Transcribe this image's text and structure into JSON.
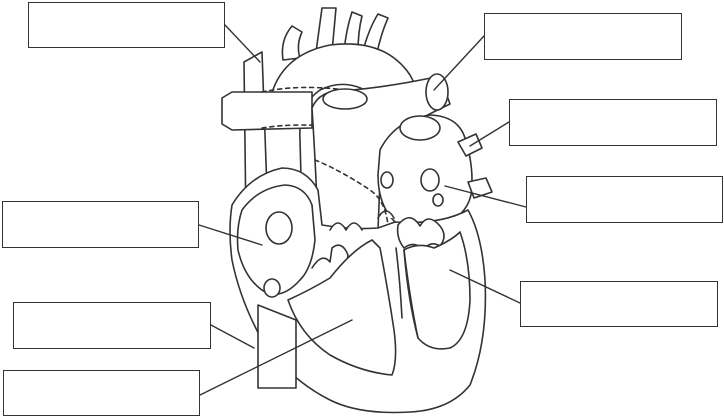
{
  "diagram": {
    "labels": [
      {
        "id": "label-top-left",
        "text": ""
      },
      {
        "id": "label-top-right",
        "text": ""
      },
      {
        "id": "label-upper-right",
        "text": ""
      },
      {
        "id": "label-middle-right",
        "text": ""
      },
      {
        "id": "label-middle-left",
        "text": ""
      },
      {
        "id": "label-lower-right",
        "text": ""
      },
      {
        "id": "label-lower-left",
        "text": ""
      },
      {
        "id": "label-bottom-left",
        "text": ""
      }
    ],
    "colors": {
      "line": "#333333",
      "fill": "#ffffff",
      "box_border": "#333333"
    }
  }
}
